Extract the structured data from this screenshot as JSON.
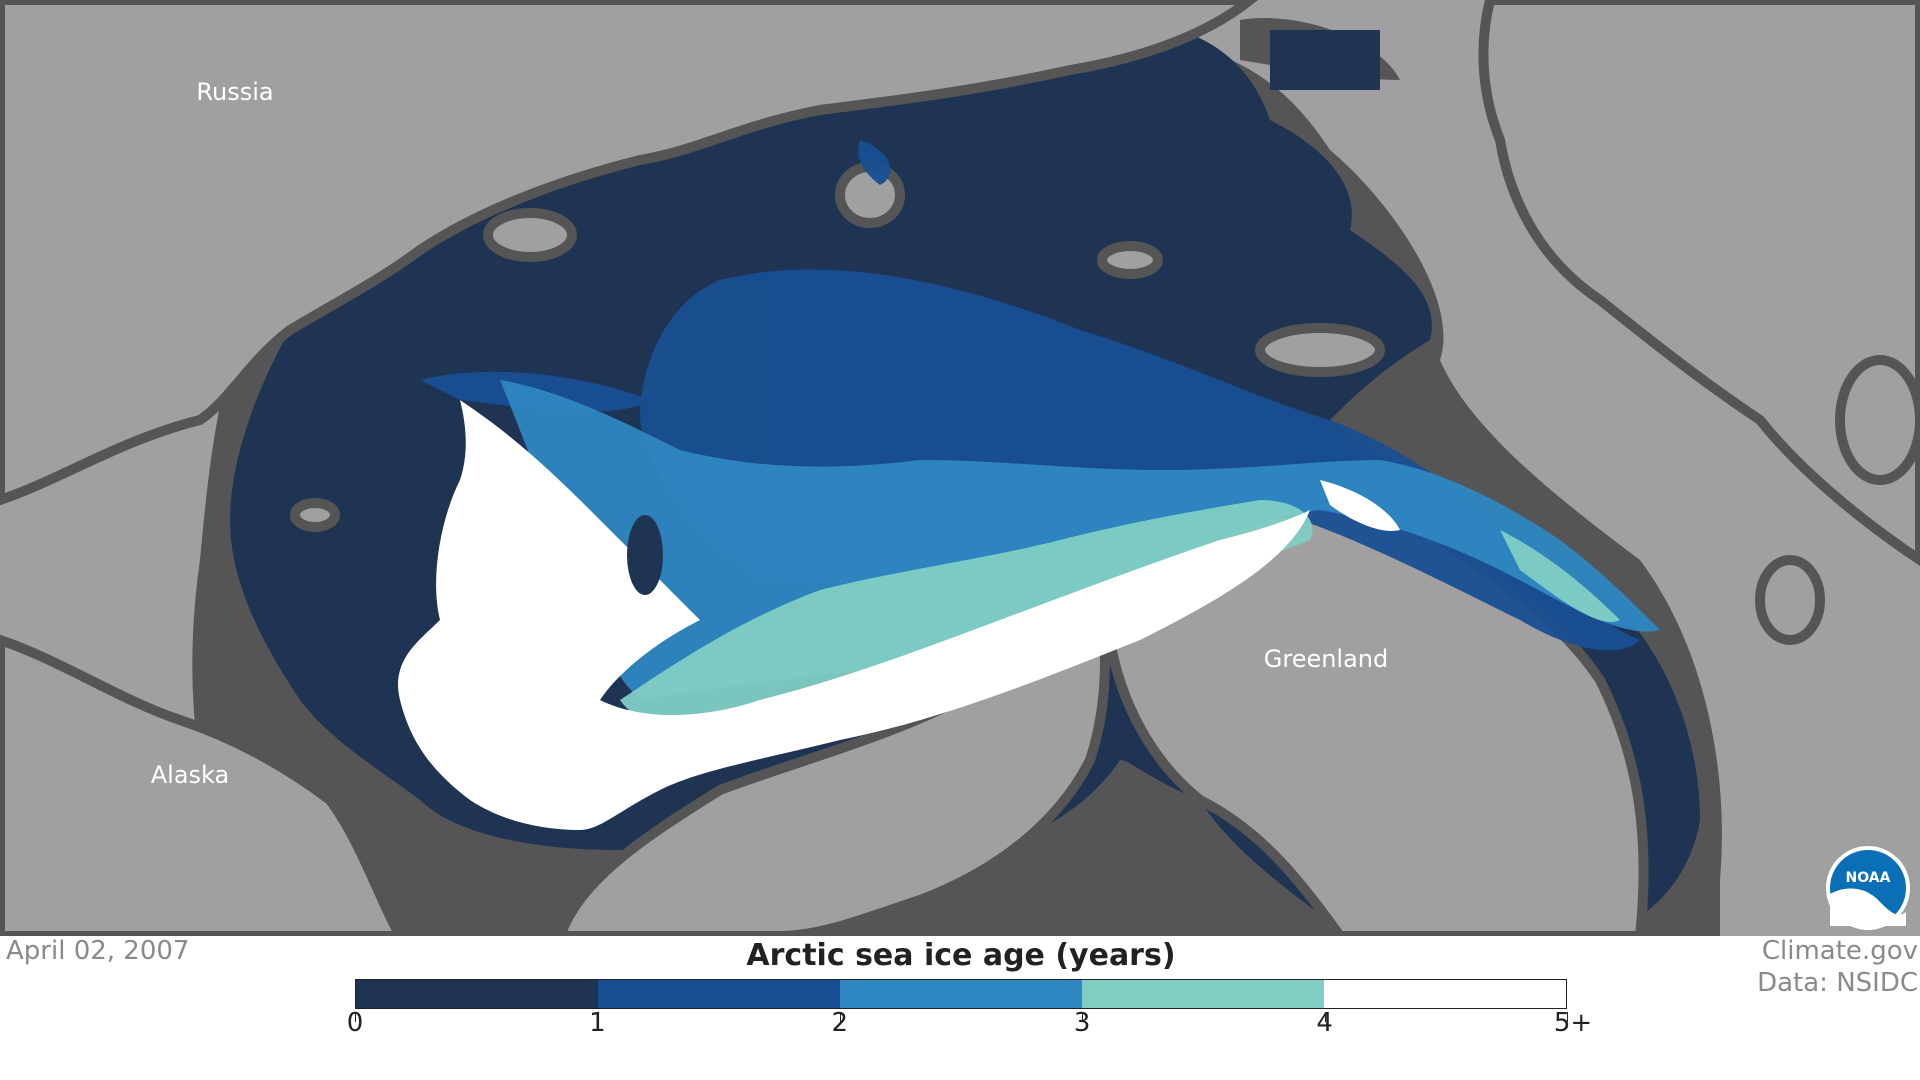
{
  "map": {
    "labels": {
      "russia": "Russia",
      "alaska": "Alaska",
      "greenland": "Greenland"
    },
    "colors": {
      "land": "#a0a0a0",
      "coast": "#555555",
      "open_water_0_1": "#1f3452"
    },
    "logo": {
      "text": "NOAA",
      "icon": "noaa-logo-icon"
    }
  },
  "footer": {
    "date": "April 02, 2007",
    "credit_site": "Climate.gov",
    "credit_data": "Data: NSIDC"
  },
  "legend": {
    "title": "Arctic sea ice age (years)",
    "bins": [
      {
        "color": "#1f3452"
      },
      {
        "color": "#184f92"
      },
      {
        "color": "#2e87c2"
      },
      {
        "color": "#7fcdc3"
      },
      {
        "color": "#ffffff"
      }
    ],
    "ticks": [
      "0",
      "1",
      "2",
      "3",
      "4",
      "5+"
    ]
  }
}
